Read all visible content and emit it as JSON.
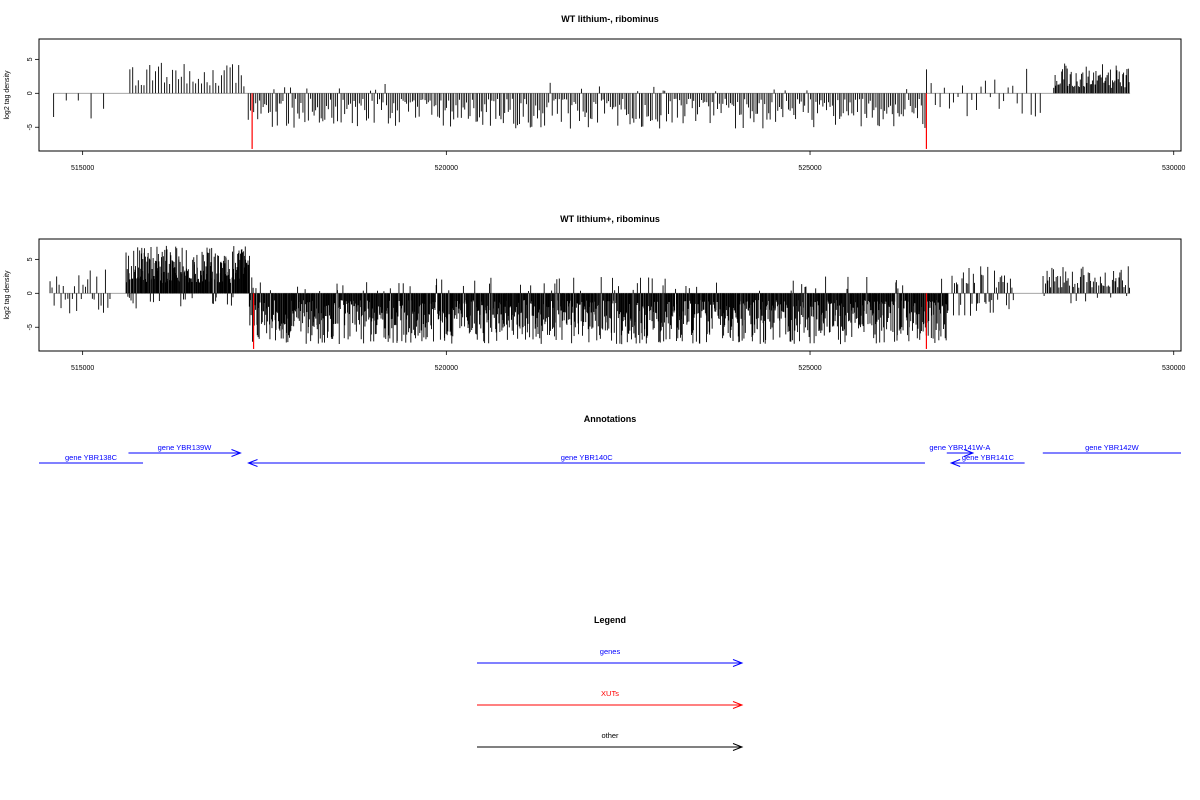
{
  "chart_data": [
    {
      "type": "bar",
      "title": "WT lithium-, ribominus",
      "ylabel": "log2 tag density",
      "xlim": [
        514400,
        530100
      ],
      "ylim": [
        -8.5,
        8
      ],
      "x_ticks": [
        515000,
        520000,
        525000,
        530000
      ],
      "y_ticks": [
        5,
        0,
        -5
      ],
      "grid": false,
      "segments": [
        {
          "from": 514600,
          "to": 515400,
          "density": 0.08,
          "pos": [
            0.5,
            1.5
          ],
          "neg": [
            1.0,
            3.8
          ],
          "pos_frac": 0.0
        },
        {
          "from": 515650,
          "to": 517250,
          "density": 0.35,
          "pos": [
            1.0,
            4.5
          ],
          "neg": [
            0.5,
            1.5
          ],
          "pos_frac": 1.0
        },
        {
          "from": 517280,
          "to": 526600,
          "density": 0.55,
          "pos": [
            0.3,
            1.6
          ],
          "neg": [
            0.8,
            5.2
          ],
          "pos_frac": 0.04
        },
        {
          "from": 526600,
          "to": 528200,
          "density": 0.22,
          "pos": [
            0.8,
            3.8
          ],
          "neg": [
            0.5,
            3.5
          ],
          "pos_frac": 0.45
        },
        {
          "from": 528350,
          "to": 529400,
          "density": 0.9,
          "pos": [
            0.8,
            4.8
          ],
          "neg": [
            0.3,
            0.8
          ],
          "pos_frac": 1.0
        }
      ],
      "highlights": [
        {
          "x": 517330,
          "y": -8.2
        },
        {
          "x": 526600,
          "y": -8.2
        }
      ],
      "seed": 7
    },
    {
      "type": "bar",
      "title": "WT lithium+, ribominus",
      "ylabel": "log2 tag density",
      "xlim": [
        514400,
        530100
      ],
      "ylim": [
        -8.5,
        8
      ],
      "x_ticks": [
        515000,
        520000,
        525000,
        530000
      ],
      "y_ticks": [
        5,
        0,
        -5
      ],
      "grid": false,
      "segments": [
        {
          "from": 514550,
          "to": 515400,
          "density": 0.45,
          "pos": [
            0.8,
            3.5
          ],
          "neg": [
            0.8,
            3.0
          ],
          "pos_frac": 0.5
        },
        {
          "from": 515600,
          "to": 517300,
          "density": 1.8,
          "pos": [
            1.5,
            7.0
          ],
          "neg": [
            0.5,
            2.5
          ],
          "pos_frac": 0.92
        },
        {
          "from": 517300,
          "to": 526900,
          "density": 1.6,
          "pos": [
            0.3,
            2.5
          ],
          "neg": [
            1.0,
            7.5
          ],
          "pos_frac": 0.06
        },
        {
          "from": 526950,
          "to": 527800,
          "density": 0.7,
          "pos": [
            0.8,
            4.0
          ],
          "neg": [
            0.8,
            4.0
          ],
          "pos_frac": 0.55
        },
        {
          "from": 528200,
          "to": 529400,
          "density": 0.75,
          "pos": [
            0.8,
            4.0
          ],
          "neg": [
            0.3,
            1.5
          ],
          "pos_frac": 0.88
        }
      ],
      "highlights": [
        {
          "x": 517350,
          "y": -8.2
        },
        {
          "x": 526600,
          "y": -8.2
        }
      ],
      "seed": 13
    }
  ],
  "annotations": {
    "title": "Annotations",
    "genes": [
      {
        "label": "gene YBR138C",
        "start": 514400,
        "end": 515830,
        "row": 2,
        "direction": "none",
        "color": "#0000ff"
      },
      {
        "label": "gene YBR139W",
        "start": 515630,
        "end": 517170,
        "row": 1,
        "direction": "right",
        "color": "#0000ff"
      },
      {
        "label": "gene YBR140C",
        "start": 517280,
        "end": 526580,
        "row": 2,
        "direction": "left",
        "color": "#0000ff"
      },
      {
        "label": "gene YBR141W-A",
        "start": 526880,
        "end": 527240,
        "row": 1,
        "direction": "right",
        "color": "#0000ff"
      },
      {
        "label": "gene YBR141C",
        "start": 526940,
        "end": 527950,
        "row": 2,
        "direction": "left",
        "color": "#0000ff"
      },
      {
        "label": "gene YBR142W",
        "start": 528200,
        "end": 530100,
        "row": 1,
        "direction": "none",
        "color": "#0000ff"
      }
    ]
  },
  "legend": {
    "title": "Legend",
    "items": [
      {
        "label": "genes",
        "color": "#0000ff"
      },
      {
        "label": "XUTs",
        "color": "#ff0000"
      },
      {
        "label": "other",
        "color": "#000000"
      }
    ]
  }
}
